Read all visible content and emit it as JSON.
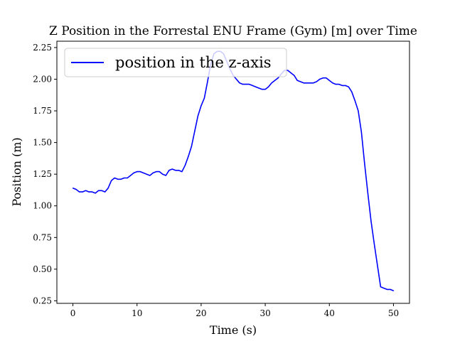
{
  "chart_data": {
    "type": "line",
    "title": "Z Position in the Forrestal ENU Frame (Gym) [m] over Time",
    "xlabel": "Time (s)",
    "ylabel": "Position (m)",
    "xlim": [
      -2.5,
      52.5
    ],
    "ylim": [
      0.23,
      2.3
    ],
    "xticks": [
      0,
      10,
      20,
      30,
      40,
      50
    ],
    "yticks": [
      0.25,
      0.5,
      0.75,
      1.0,
      1.25,
      1.5,
      1.75,
      2.0,
      2.25
    ],
    "xtick_labels": [
      "0",
      "10",
      "20",
      "30",
      "40",
      "50"
    ],
    "ytick_labels": [
      "0.25",
      "0.50",
      "0.75",
      "1.00",
      "1.25",
      "1.50",
      "1.75",
      "2.00",
      "2.25"
    ],
    "grid": false,
    "legend_position": "top-left",
    "series": [
      {
        "name": "position in the z-axis",
        "color": "#0000ff",
        "x": [
          0,
          0.5,
          1,
          1.5,
          2,
          2.5,
          3,
          3.5,
          4,
          4.5,
          5,
          5.5,
          6,
          6.5,
          7,
          7.5,
          8,
          8.5,
          9,
          9.5,
          10,
          10.5,
          11,
          11.5,
          12,
          12.5,
          13,
          13.5,
          14,
          14.5,
          15,
          15.5,
          16,
          16.5,
          17,
          17.5,
          18,
          18.5,
          19,
          19.5,
          20,
          20.5,
          21,
          21.5,
          22,
          22.5,
          23,
          23.5,
          24,
          24.5,
          25,
          25.5,
          26,
          26.5,
          27,
          27.5,
          28,
          28.5,
          29,
          29.5,
          30,
          30.5,
          31,
          31.5,
          32,
          32.5,
          33,
          33.5,
          34,
          34.5,
          35,
          35.5,
          36,
          36.5,
          37,
          37.5,
          38,
          38.5,
          39,
          39.5,
          40,
          40.5,
          41,
          41.5,
          42,
          42.5,
          43,
          43.5,
          44,
          44.5,
          45,
          45.5,
          46,
          46.5,
          47,
          47.5,
          48,
          48.5,
          49,
          49.5,
          50
        ],
        "y": [
          1.14,
          1.13,
          1.11,
          1.11,
          1.12,
          1.11,
          1.11,
          1.1,
          1.12,
          1.12,
          1.11,
          1.14,
          1.2,
          1.22,
          1.21,
          1.21,
          1.22,
          1.22,
          1.24,
          1.26,
          1.27,
          1.27,
          1.26,
          1.25,
          1.24,
          1.26,
          1.27,
          1.27,
          1.25,
          1.24,
          1.28,
          1.29,
          1.28,
          1.28,
          1.27,
          1.32,
          1.39,
          1.47,
          1.59,
          1.71,
          1.79,
          1.85,
          1.98,
          2.12,
          2.2,
          2.22,
          2.22,
          2.2,
          2.14,
          2.08,
          2.03,
          2.0,
          1.97,
          1.96,
          1.96,
          1.96,
          1.95,
          1.94,
          1.93,
          1.92,
          1.92,
          1.94,
          1.97,
          1.99,
          2.01,
          2.04,
          2.07,
          2.07,
          2.05,
          2.03,
          1.99,
          1.98,
          1.97,
          1.97,
          1.97,
          1.97,
          1.98,
          2.0,
          2.01,
          2.01,
          1.99,
          1.97,
          1.96,
          1.96,
          1.95,
          1.95,
          1.94,
          1.9,
          1.83,
          1.75,
          1.58,
          1.33,
          1.1,
          0.88,
          0.7,
          0.53,
          0.36,
          0.35,
          0.34,
          0.34,
          0.33
        ]
      }
    ]
  }
}
